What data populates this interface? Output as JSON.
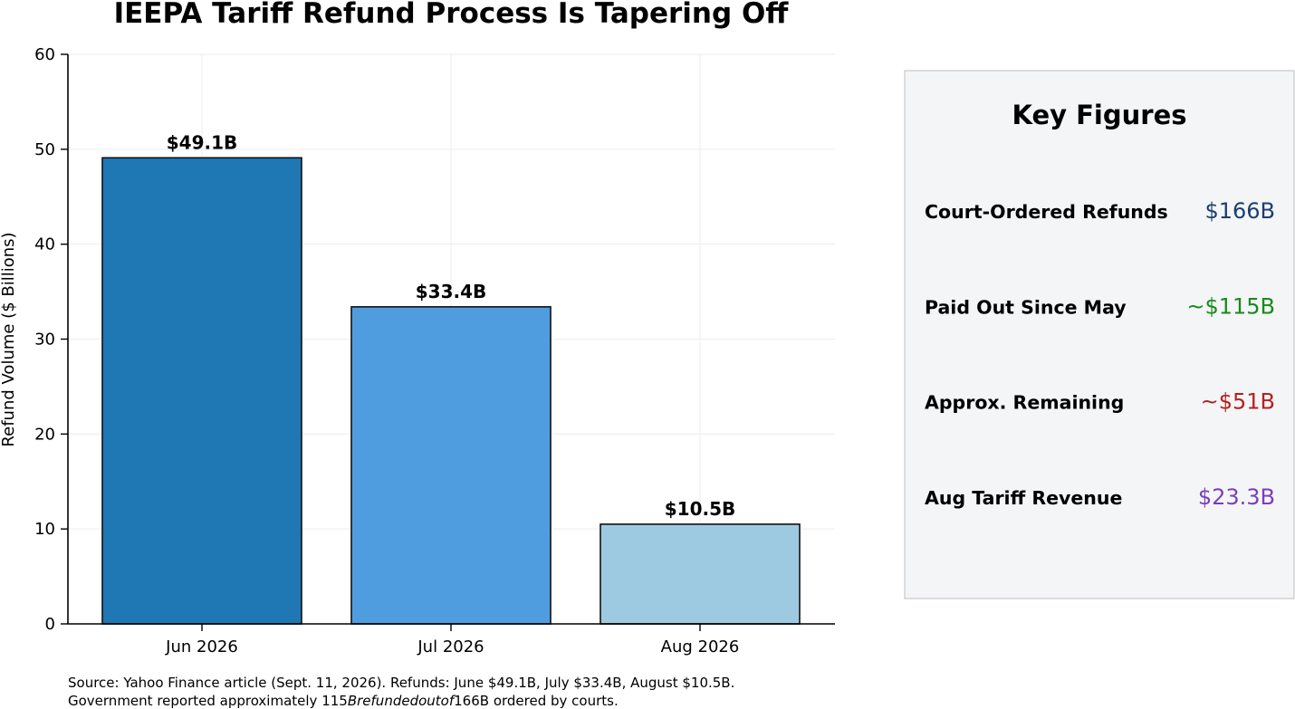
{
  "chart_data": {
    "type": "bar",
    "title": "IEEPA Tariff Refund Process Is Tapering Off",
    "xlabel": "",
    "ylabel": "Refund Volume ($ Billions)",
    "ylim": [
      0,
      60
    ],
    "yticks": [
      0,
      10,
      20,
      30,
      40,
      50,
      60
    ],
    "categories": [
      "Jun 2026",
      "Jul 2026",
      "Aug 2026"
    ],
    "values": [
      49.1,
      33.4,
      10.5
    ],
    "data_labels": [
      "$49.1B",
      "$33.4B",
      "$10.5B"
    ],
    "bar_colors": [
      "#1f77b4",
      "#4f9ddf",
      "#9ecae1"
    ],
    "grid": true,
    "legend": "none"
  },
  "source_note": {
    "line1": "Source: Yahoo Finance article (Sept. 11, 2026). Refunds: June $49.1B, July $33.4B, August $10.5B.",
    "line2_before": "Government reported approximately 115",
    "line2_italic": "Brefundedoutof",
    "line2_after": "166B ordered by courts."
  },
  "key_figures": {
    "title": "Key Figures",
    "items": [
      {
        "label": "Court-Ordered Refunds",
        "value": "$166B",
        "color": "#1b3f6e"
      },
      {
        "label": "Paid Out Since May",
        "value": "~$115B",
        "color": "#1a8a1a"
      },
      {
        "label": "Approx. Remaining",
        "value": "~$51B",
        "color": "#b22222"
      },
      {
        "label": "Aug Tariff Revenue",
        "value": "$23.3B",
        "color": "#7b3fb8"
      }
    ]
  }
}
